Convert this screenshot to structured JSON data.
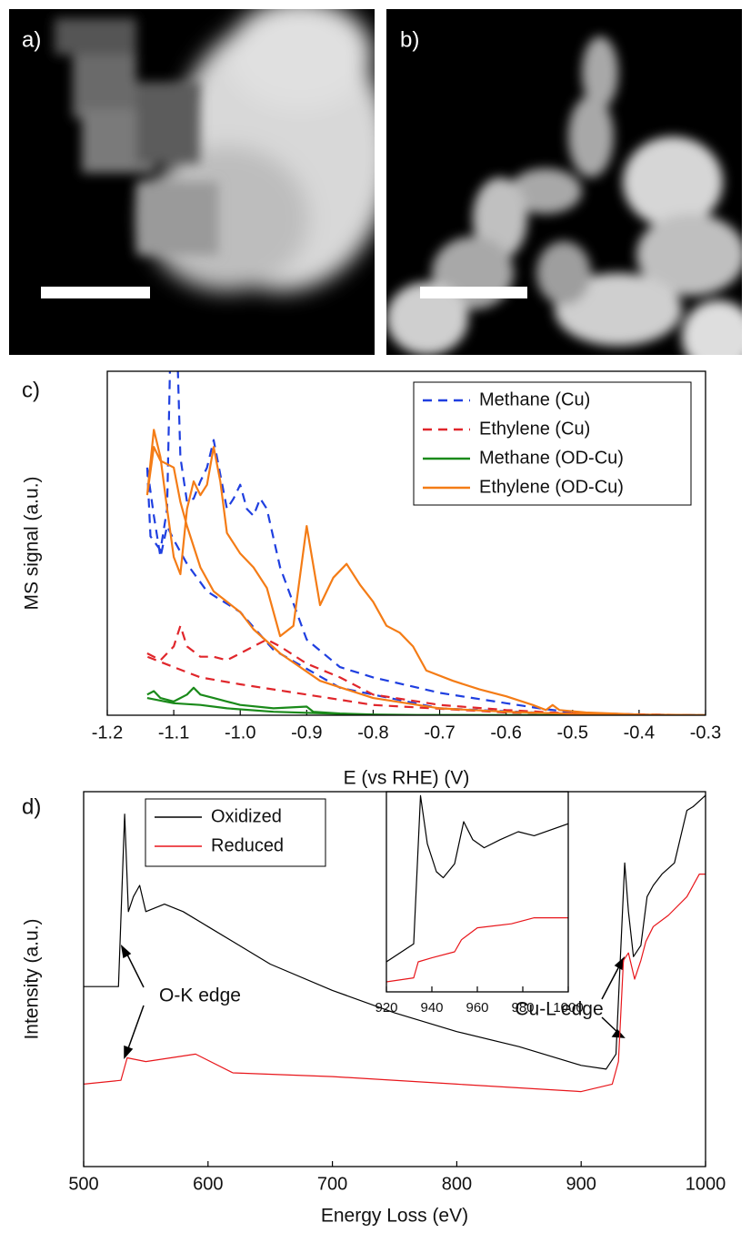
{
  "panels": [
    "a)",
    "b)",
    "c)",
    "d)"
  ],
  "chart_data": [
    {
      "type": "line",
      "xlabel": "E (vs RHE) (V)",
      "ylabel": "MS signal (a.u.)",
      "xlim": [
        -1.2,
        -0.3
      ],
      "ylim": [
        0,
        100
      ],
      "xticks": [
        -1.2,
        -1.1,
        {
          "value": -1,
          "label": "-1.0"
        },
        -0.9,
        -0.8,
        -0.7,
        -0.6,
        -0.5,
        -0.4,
        -0.3
      ],
      "legend": "upper right",
      "series": [
        {
          "name": "Methane (Cu)",
          "color": "#1f3fe0",
          "dash": true,
          "x": [
            -1.14,
            -1.135,
            -1.12,
            -1.11,
            -1.105,
            -1.095,
            -1.09,
            -1.08,
            -1.07,
            -1.06,
            -1.05,
            -1.04,
            -1.03,
            -1.02,
            -1.01,
            -1.0,
            -0.99,
            -0.98,
            -0.97,
            -0.96,
            -0.94,
            -0.9,
            -0.85,
            -0.8,
            -0.7,
            -0.6,
            -0.55,
            -0.5,
            -0.4,
            -0.3,
            -0.5,
            -0.7,
            -0.85,
            -0.95,
            -1.0,
            -1.05,
            -1.08,
            -1.1,
            -1.11,
            -1.12,
            -1.13,
            -1.14
          ],
          "values": [
            72,
            52,
            48,
            60,
            108,
            108,
            75,
            62,
            63,
            68,
            72,
            80,
            70,
            60,
            63,
            67,
            60,
            58,
            63,
            60,
            43,
            22,
            14,
            11,
            6.5,
            3.5,
            2,
            0.8,
            0.2,
            0,
            0.3,
            2,
            8,
            19,
            30,
            36,
            44,
            51,
            55,
            46,
            58,
            72
          ]
        },
        {
          "name": "Ethylene (Cu)",
          "color": "#e0262b",
          "dash": true,
          "x": [
            -1.14,
            -1.12,
            -1.1,
            -1.09,
            -1.08,
            -1.06,
            -1.04,
            -1.02,
            -1.0,
            -0.98,
            -0.96,
            -0.94,
            -0.9,
            -0.85,
            -0.8,
            -0.7,
            -0.6,
            -0.5,
            -0.4,
            -0.3,
            -0.6,
            -0.8,
            -0.9,
            -1.0,
            -1.06,
            -1.1,
            -1.14
          ],
          "values": [
            18,
            16,
            20,
            26,
            20,
            17,
            17,
            16,
            18,
            20,
            22,
            20,
            15,
            11,
            6,
            3,
            1.5,
            0.5,
            0.1,
            0,
            0.8,
            3,
            6,
            9,
            11,
            14,
            17
          ]
        },
        {
          "name": "Methane (OD-Cu)",
          "color": "#1a8a1a",
          "dash": false,
          "x": [
            -1.14,
            -1.13,
            -1.12,
            -1.1,
            -1.08,
            -1.07,
            -1.06,
            -1.04,
            -1.02,
            -1.0,
            -0.95,
            -0.9,
            -0.89,
            -0.85,
            -0.8,
            -0.7,
            -0.3,
            -0.8,
            -0.95,
            -1.02,
            -1.06,
            -1.1,
            -1.14
          ],
          "values": [
            6,
            7,
            5,
            4,
            6,
            8,
            6,
            5,
            4,
            3,
            2,
            2.5,
            1,
            0.5,
            0.2,
            0,
            0,
            0.1,
            1,
            2,
            3,
            3.5,
            5
          ]
        },
        {
          "name": "Ethylene (OD-Cu)",
          "color": "#f47c16",
          "dash": false,
          "x": [
            -1.14,
            -1.13,
            -1.12,
            -1.11,
            -1.1,
            -1.09,
            -1.08,
            -1.07,
            -1.06,
            -1.05,
            -1.04,
            -1.03,
            -1.02,
            -1.0,
            -0.98,
            -0.96,
            -0.94,
            -0.92,
            -0.9,
            -0.88,
            -0.86,
            -0.84,
            -0.82,
            -0.8,
            -0.78,
            -0.76,
            -0.74,
            -0.72,
            -0.68,
            -0.64,
            -0.6,
            -0.56,
            -0.54,
            -0.53,
            -0.52,
            -0.48,
            -0.4,
            -0.3,
            -0.4,
            -0.5,
            -0.6,
            -0.7,
            -0.8,
            -0.88,
            -0.94,
            -0.98,
            -1.0,
            -1.02,
            -1.04,
            -1.06,
            -1.08,
            -1.09,
            -1.1,
            -1.12,
            -1.13,
            -1.14
          ],
          "values": [
            64,
            83,
            75,
            60,
            46,
            41,
            60,
            68,
            64,
            67,
            78,
            68,
            53,
            47,
            43,
            37,
            23,
            26,
            55,
            32,
            40,
            44,
            38,
            33,
            26,
            24,
            20,
            13,
            10,
            7.5,
            5.5,
            3,
            1.5,
            3,
            1.5,
            0.8,
            0.2,
            0,
            0.1,
            0.4,
            1,
            2,
            5,
            10,
            18,
            25,
            30,
            33,
            36,
            43,
            55,
            62,
            72,
            74,
            78,
            64
          ]
        }
      ]
    },
    {
      "type": "line",
      "xlabel": "Energy Loss (eV)",
      "ylabel": "Intensity (a.u.)",
      "xlim": [
        500,
        1000
      ],
      "ylim": [
        0,
        100
      ],
      "xticks": [
        500,
        600,
        700,
        800,
        900,
        1000
      ],
      "legend": "upper left",
      "annotations": [
        "O-K edge",
        "Cu-L edge"
      ],
      "series": [
        {
          "name": "Oxidized",
          "color": "#000000",
          "dash": false,
          "x": [
            500,
            528,
            533,
            536,
            540,
            545,
            550,
            565,
            580,
            600,
            650,
            700,
            750,
            800,
            850,
            900,
            920,
            928,
            935,
            938,
            942,
            948,
            953,
            958,
            965,
            975,
            985,
            990,
            1000
          ],
          "values": [
            48,
            48,
            94,
            68,
            72,
            75,
            68,
            70,
            68,
            64,
            54,
            47,
            41,
            36,
            32,
            27,
            26,
            30,
            81,
            68,
            56,
            59,
            72,
            75,
            78,
            81,
            95,
            96,
            99
          ]
        },
        {
          "name": "Reduced",
          "color": "#e8161b",
          "dash": false,
          "x": [
            500,
            530,
            535,
            550,
            590,
            620,
            700,
            800,
            900,
            925,
            930,
            934,
            938,
            943,
            948,
            952,
            958,
            970,
            985,
            995,
            1000
          ],
          "values": [
            22,
            23,
            29,
            28,
            30,
            25,
            24,
            22,
            20,
            22,
            28,
            55,
            57,
            50,
            55,
            60,
            64,
            67,
            72,
            78,
            78
          ]
        }
      ]
    },
    {
      "type": "line",
      "xlim": [
        920,
        1000
      ],
      "ylim": [
        0,
        100
      ],
      "xticks": [
        920,
        940,
        960,
        980,
        1000
      ],
      "series": [
        {
          "color": "#000000",
          "dash": false,
          "x": [
            920,
            932,
            935,
            938,
            942,
            945,
            950,
            954,
            958,
            963,
            970,
            978,
            985,
            1000
          ],
          "values": [
            15,
            24,
            98,
            74,
            60,
            57,
            64,
            85,
            76,
            72,
            76,
            80,
            78,
            84
          ]
        },
        {
          "color": "#e8161b",
          "dash": false,
          "x": [
            920,
            932,
            934,
            940,
            950,
            953,
            960,
            975,
            985,
            1000
          ],
          "values": [
            5,
            7,
            15,
            17,
            20,
            26,
            32,
            34,
            37,
            37
          ]
        }
      ]
    }
  ]
}
